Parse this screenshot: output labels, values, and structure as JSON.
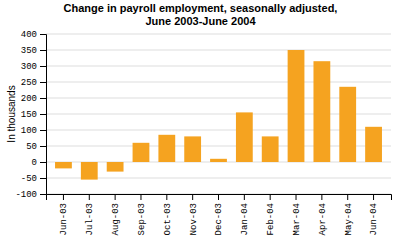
{
  "chart_data": {
    "type": "bar",
    "title": "Change in payroll employment, seasonally adjusted,",
    "subtitle": "June 2003-June 2004",
    "ylabel": "In thousands",
    "categories": [
      "Jun-03",
      "Jul-03",
      "Aug-03",
      "Sep-03",
      "Oct-03",
      "Nov-03",
      "Dec-03",
      "Jan-04",
      "Feb-04",
      "Mar-04",
      "Apr-04",
      "May-04",
      "Jun-04"
    ],
    "values": [
      -20,
      -55,
      -30,
      60,
      85,
      80,
      10,
      155,
      80,
      350,
      315,
      235,
      110
    ],
    "color": "#F5A320",
    "ylim": [
      -100,
      400
    ],
    "yticks": [
      -100,
      -50,
      0,
      50,
      100,
      150,
      200,
      250,
      300,
      350,
      400
    ],
    "grid": true
  }
}
